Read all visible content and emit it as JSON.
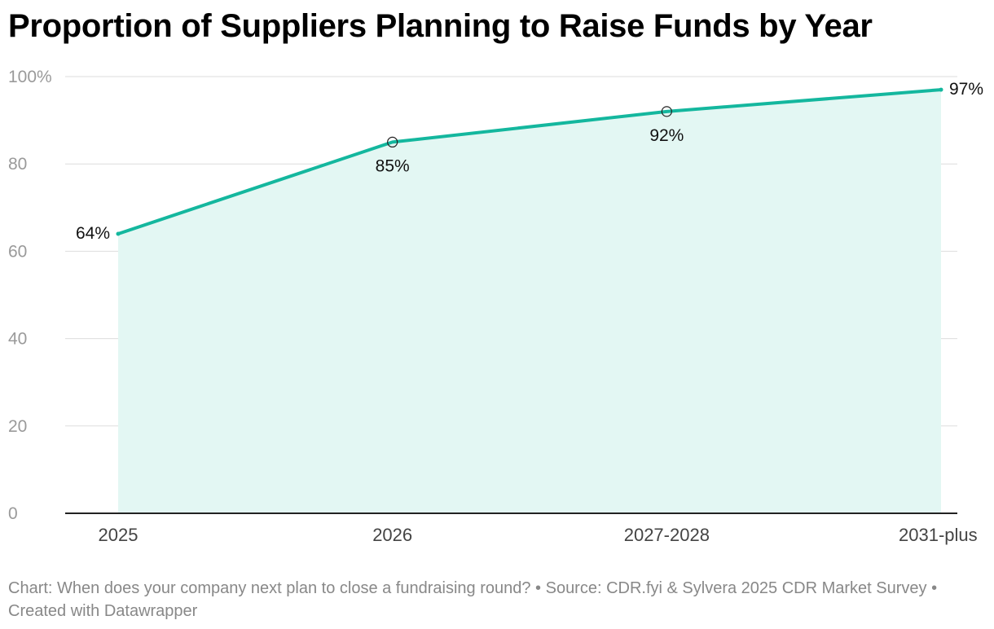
{
  "chart_data": {
    "type": "area",
    "title": "Proportion of Suppliers Planning to Raise Funds by Year",
    "categories": [
      "2025",
      "2026",
      "2027-2028",
      "2031-plus"
    ],
    "series": [
      {
        "values": [
          64,
          85,
          92,
          97
        ],
        "labels": [
          "64%",
          "85%",
          "92%",
          "97%"
        ]
      }
    ],
    "y_ticks": [
      0,
      20,
      40,
      60,
      80,
      100
    ],
    "y_tick_labels": [
      "0",
      "20",
      "40",
      "60",
      "80",
      "100%"
    ],
    "ylim": [
      0,
      100
    ],
    "grid": true,
    "legend": "none",
    "colors": {
      "line": "#14b79e",
      "fill": "#e3f7f3",
      "grid": "#dddddd",
      "axis": "#222222"
    }
  },
  "footer": {
    "text": "Chart: When does your company next plan to close a fundraising round? • Source: CDR.fyi & Sylvera 2025 CDR Market Survey • Created with Datawrapper"
  }
}
